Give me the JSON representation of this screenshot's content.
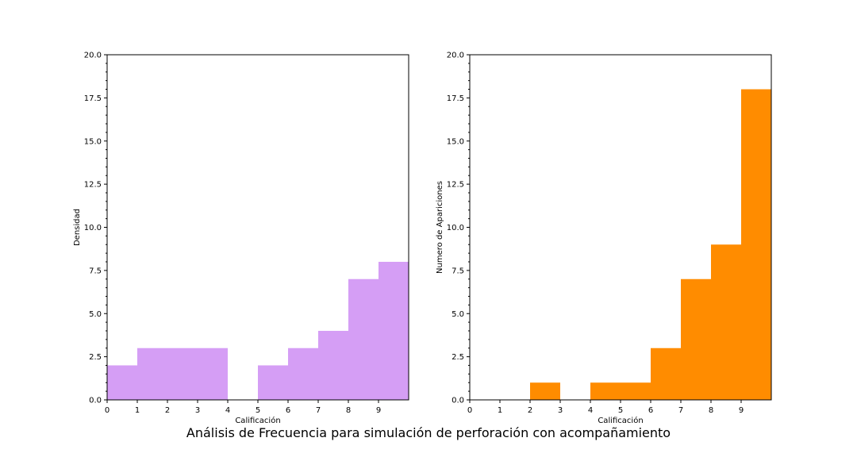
{
  "figure": {
    "suptitle": "Análisis de Frecuencia para simulación de perforación con acompañamiento"
  },
  "chart_data": [
    {
      "type": "bar",
      "color": "#d59ef5",
      "xlabel": "Calificación",
      "ylabel": "Densidad",
      "xlim": [
        0,
        10
      ],
      "ylim": [
        0,
        20
      ],
      "xticks": [
        "0",
        "1",
        "2",
        "3",
        "4",
        "5",
        "6",
        "7",
        "8",
        "9"
      ],
      "yticks": [
        "0.0",
        "2.5",
        "5.0",
        "7.5",
        "10.0",
        "12.5",
        "15.0",
        "17.5",
        "20.0"
      ],
      "bin_edges": [
        0,
        1,
        2,
        3,
        4,
        5,
        6,
        7,
        8,
        9,
        10
      ],
      "values": [
        2,
        3,
        3,
        3,
        0,
        2,
        3,
        4,
        7,
        8
      ],
      "grid": false
    },
    {
      "type": "bar",
      "color": "#ff8c00",
      "xlabel": "Calificación",
      "ylabel": "Numero de Apariciones",
      "xlim": [
        0,
        10
      ],
      "ylim": [
        0,
        20
      ],
      "xticks": [
        "0",
        "1",
        "2",
        "3",
        "4",
        "5",
        "6",
        "7",
        "8",
        "9"
      ],
      "yticks": [
        "0.0",
        "2.5",
        "5.0",
        "7.5",
        "10.0",
        "12.5",
        "15.0",
        "17.5",
        "20.0"
      ],
      "bin_edges": [
        0,
        1,
        2,
        3,
        4,
        5,
        6,
        7,
        8,
        9,
        10
      ],
      "values": [
        0,
        0,
        1,
        0,
        1,
        1,
        3,
        7,
        9,
        18
      ],
      "grid": false
    }
  ]
}
